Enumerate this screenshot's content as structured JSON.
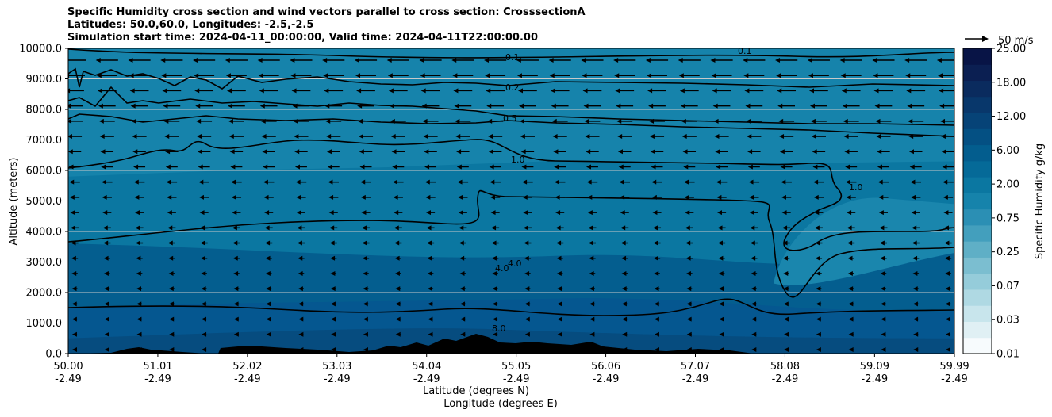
{
  "chart_data": {
    "type": "contour-cross-section",
    "title_lines": [
      "Specific Humidity cross section and wind vectors parallel to cross section: CrosssectionA",
      "Latitudes: 50.0,60.0, Longitudes: -2.5,-2.5",
      "Simulation start time: 2024-04-11_00:00:00, Valid time: 2024-04-11T22:00:00.00"
    ],
    "xlabel_lat": "Latitude (degrees N)",
    "xlabel_lon": "Longitude (degrees E)",
    "ylabel": "Altitude (meters)",
    "x_ticks": [
      {
        "lat": "50.00",
        "lon": "-2.49"
      },
      {
        "lat": "51.01",
        "lon": "-2.49"
      },
      {
        "lat": "52.02",
        "lon": "-2.49"
      },
      {
        "lat": "53.03",
        "lon": "-2.49"
      },
      {
        "lat": "54.04",
        "lon": "-2.49"
      },
      {
        "lat": "55.05",
        "lon": "-2.49"
      },
      {
        "lat": "56.06",
        "lon": "-2.49"
      },
      {
        "lat": "57.07",
        "lon": "-2.49"
      },
      {
        "lat": "58.08",
        "lon": "-2.49"
      },
      {
        "lat": "59.09",
        "lon": "-2.49"
      },
      {
        "lat": "59.99",
        "lon": "-2.49"
      }
    ],
    "y_ticks": [
      "0.0",
      "1000.0",
      "2000.0",
      "3000.0",
      "4000.0",
      "5000.0",
      "6000.0",
      "7000.0",
      "8000.0",
      "9000.0",
      "10000.0"
    ],
    "ylim": [
      0,
      10000
    ],
    "colorbar": {
      "label": "Specific Humidity g/kg",
      "tick_labels": [
        "0.01",
        "0.03",
        "0.07",
        "0.25",
        "0.75",
        "2.00",
        "6.00",
        "12.00",
        "18.00",
        "25.00"
      ],
      "colors": [
        "#f7fbfd",
        "#e0f0f4",
        "#c8e5ec",
        "#afd9e3",
        "#95ccda",
        "#7bbed0",
        "#5fafc6",
        "#439fbd",
        "#2b8fb4",
        "#1683ab",
        "#0b77a1",
        "#056a98",
        "#035d8e",
        "#045083",
        "#064377",
        "#08376b",
        "#0a2b5e",
        "#0b1f52",
        "#081446"
      ]
    },
    "wind_reference": "50 m/s",
    "contour_labels": [
      "0.1",
      "0.2",
      "0.5",
      "1.0",
      "4.0",
      "8.0"
    ],
    "terrain_note": "black filled terrain near surface"
  }
}
